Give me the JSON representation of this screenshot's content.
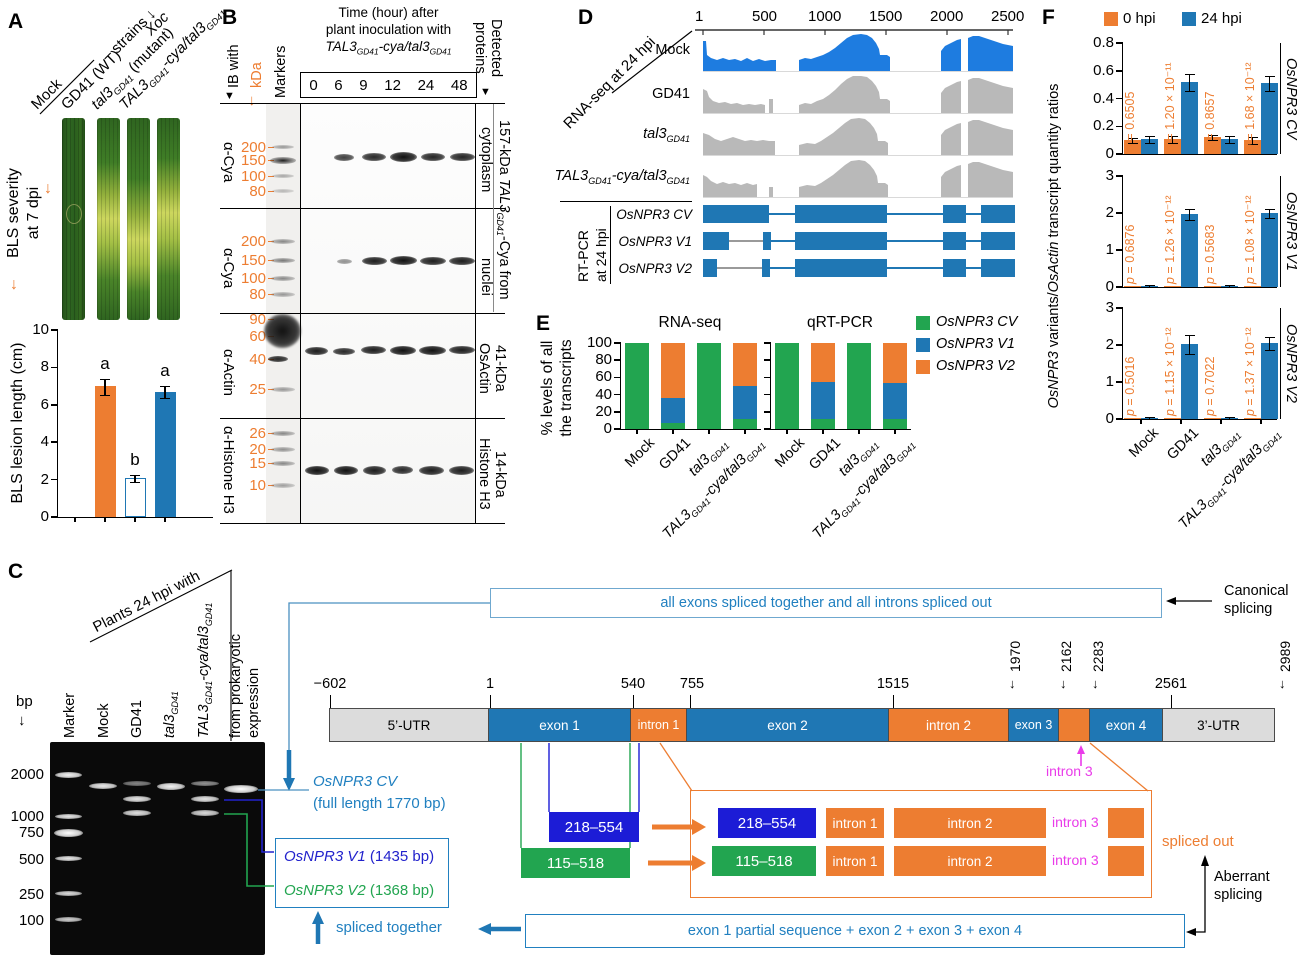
{
  "names": {
    "mock": {
      "text": "Mock"
    },
    "gd41": {
      "text": "GD41"
    },
    "tal3": {
      "pre": "tal3",
      "sub": "GD41"
    },
    "talcya": {
      "pre": "TAL3",
      "sub": "GD41",
      "mid": "-cya/tal3",
      "sub2": "GD41"
    }
  },
  "panelA": {
    "label": "A",
    "col_labels": [
      {
        "text": "Mock"
      },
      {
        "text": "GD41 (WT)"
      },
      {
        "pre": "tal3",
        "sub": "GD41",
        "post": " (mutant)"
      },
      {
        "pre": "TAL3",
        "sub": "GD41",
        "mid": "-cya/tal3",
        "sub2": "GD41"
      }
    ],
    "strains_label": "strains ↓",
    "species_label": "Xoc",
    "severity_line1": "BLS severity",
    "severity_line2": "at 7 dpi",
    "down_arrow": "↓"
  },
  "panelB": {
    "label": "B",
    "ib_with": "IB with",
    "kda": "kDa",
    "markers": "Markers",
    "title_line1": "Time (hour) after",
    "title_line2": "plant inoculation with",
    "times": [
      "0",
      "6",
      "9",
      "12",
      "24",
      "48"
    ],
    "detected_line1": "Detected",
    "detected_line2": "proteins",
    "antibodies": [
      "α-Cya",
      "α-Cya",
      "α-Actin",
      "α-Histone H3"
    ],
    "marker_rows": {
      "s1": [
        "200",
        "150",
        "100",
        "80"
      ],
      "s2": [
        "200",
        "150",
        "100",
        "80"
      ],
      "s3": [
        "90",
        "60",
        "40",
        "25"
      ],
      "s4": [
        "26",
        "20",
        "15",
        "10"
      ]
    },
    "right_cytoplasm": "cytoplasm",
    "right_nuclei": "nuclei",
    "right_cya_pre": "157-kDa ",
    "right_cya_name": "TAL3",
    "right_cya_sub": "GD41",
    "right_cya_post": "-Cya from",
    "right_actin_line1": "41-kDa",
    "right_actin_line2": "OsActin",
    "right_h3_line1": "14-kDa",
    "right_h3_line2": "Histone H3"
  },
  "panelD": {
    "label": "D",
    "scale_ticks": [
      "1",
      "500",
      "1000",
      "1500",
      "2000",
      "2500"
    ],
    "rnaseq_label": "RNA-seq at 24 hpi",
    "rtpcr_line1": "RT-PCR",
    "rtpcr_line2": "at 24 hpi",
    "models": [
      "OsNPR3 CV",
      "OsNPR3 V1",
      "OsNPR3 V2"
    ]
  },
  "panelE": {
    "label": "E",
    "ylabel_line1": "% levels of all",
    "ylabel_line2": "the transcripts",
    "legend": [
      "OsNPR3 CV",
      "OsNPR3 V1",
      "OsNPR3 V2"
    ]
  },
  "panelF": {
    "label": "F",
    "legend": [
      "0 hpi",
      "24 hpi"
    ],
    "ylabel_italic1": "OsNPR3",
    "ylabel_mid": " variants/",
    "ylabel_italic2": "OsActin",
    "ylabel_post": " transcript quantity ratios"
  },
  "panelC": {
    "label": "C",
    "header": "Plants 24 hpi with",
    "bp": "bp",
    "down_arrow": "↓",
    "ladder": [
      "2000",
      "1000",
      "750",
      "500",
      "250",
      "100"
    ],
    "lane_marker": "Marker",
    "prok_line1": "from prokaryotic",
    "prok_line2": "expression",
    "cv_name": "OsNPR3 CV",
    "cv_size": "(full length 1770 bp)",
    "v1_name": "OsNPR3 V1",
    "v1_size": " (1435 bp)",
    "v2_name": "OsNPR3 V2",
    "v2_size": " (1368 bp)",
    "spliced_together": "spliced together",
    "canonical_line1": "Canonical",
    "canonical_line2": "splicing",
    "aberrant_line1": "Aberrant",
    "aberrant_line2": "splicing",
    "spliced_out": "spliced out",
    "top_box": "all exons spliced together and all introns spliced out",
    "bottom_box": "exon 1 partial sequence + exon 2 + exon 3 + exon 4",
    "gene": {
      "coords_h": [
        "−602",
        "1",
        "540",
        "755",
        "1515",
        "2561"
      ],
      "coords_v": [
        "1970",
        "2162",
        "2283",
        "2989"
      ],
      "segments": [
        "5’-UTR",
        "exon 1",
        "intron 1",
        "exon 2",
        "intron 2",
        "exon 3",
        "exon 4",
        "3’-UTR"
      ],
      "intron3_label": "intron 3",
      "blue_block": "218–554",
      "green_block": "115–518",
      "box_introns": [
        "intron 1",
        "intron 2",
        "intron 3"
      ]
    }
  },
  "chart_data": [
    {
      "id": "panelA_lesion_length",
      "type": "bar",
      "ylabel": "BLS lesion length (cm)",
      "ylim": [
        0,
        10
      ],
      "ticks": [
        0,
        2,
        4,
        6,
        8,
        10
      ],
      "categories": [
        "Mock",
        "GD41",
        "tal3GD41",
        "TAL3GD41-cya/tal3GD41"
      ],
      "values": [
        0,
        7.0,
        2.1,
        6.7
      ],
      "errors": [
        0,
        0.4,
        0.15,
        0.3
      ],
      "sig_letters": [
        "",
        "a",
        "b",
        "a"
      ],
      "colors": [
        "",
        "#ED7D31",
        "#FFFFFF",
        "#1F77B4"
      ]
    },
    {
      "id": "panelE_transcript_percentages",
      "type": "stacked-bar",
      "ylabel": "% levels of all the transcripts",
      "ylim": [
        0,
        100
      ],
      "ticks": [
        0,
        20,
        40,
        60,
        80,
        100
      ],
      "series_names": [
        "OsNPR3 CV",
        "OsNPR3 V1",
        "OsNPR3 V2"
      ],
      "colors": [
        "#22A550",
        "#1F77B4",
        "#ED7D31"
      ],
      "cat_keys": [
        "mock",
        "gd41",
        "tal3",
        "talcya"
      ],
      "charts": [
        {
          "title": "RNA-seq",
          "values": [
            [
              100,
              0,
              0
            ],
            [
              7,
              29,
              64
            ],
            [
              100,
              0,
              0
            ],
            [
              12,
              38,
              50
            ]
          ]
        },
        {
          "title": "qRT-PCR",
          "values": [
            [
              100,
              0,
              0
            ],
            [
              12,
              43,
              45
            ],
            [
              100,
              0,
              0
            ],
            [
              12,
              41,
              47
            ]
          ]
        }
      ]
    },
    {
      "id": "panelF_qRTPCR_ratios",
      "type": "grouped-bar",
      "ylabel": "OsNPR3 variants/OsActin transcript quantity ratios",
      "legend": [
        "0 hpi",
        "24 hpi"
      ],
      "colors": [
        "#ED7D31",
        "#1F77B4"
      ],
      "cat_keys": [
        "mock",
        "gd41",
        "tal3",
        "talcya"
      ],
      "charts": [
        {
          "right_label": "OsNPR3 CV",
          "ymax": 0.8,
          "ticks": [
            0,
            0.2,
            0.4,
            0.6,
            0.8
          ],
          "values_0hpi": [
            0.1,
            0.11,
            0.12,
            0.1
          ],
          "values_24hpi": [
            0.11,
            0.52,
            0.11,
            0.51
          ],
          "errors_0hpi": [
            0.012,
            0.02,
            0.015,
            0.02
          ],
          "errors_24hpi": [
            0.02,
            0.06,
            0.02,
            0.05
          ],
          "p_values": [
            "0.6505",
            "1.20 × 10⁻¹¹",
            "0.8657",
            "1.68 × 10⁻¹²"
          ]
        },
        {
          "right_label": "OsNPR3 V1",
          "ymax": 3,
          "ticks": [
            0,
            1,
            2,
            3
          ],
          "values_0hpi": [
            0.02,
            0.04,
            0.02,
            0.04
          ],
          "values_24hpi": [
            0.03,
            1.98,
            0.03,
            2.0
          ],
          "errors_0hpi": [
            0,
            0,
            0,
            0
          ],
          "errors_24hpi": [
            0.01,
            0.13,
            0.01,
            0.1
          ],
          "p_values": [
            "0.6876",
            "1.26 × 10⁻¹²",
            "0.5683",
            "1.08 × 10⁻¹²"
          ]
        },
        {
          "right_label": "OsNPR3 V2",
          "ymax": 3,
          "ticks": [
            0,
            1,
            2,
            3
          ],
          "values_0hpi": [
            0.02,
            0.04,
            0.02,
            0.04
          ],
          "values_24hpi": [
            0.03,
            2.03,
            0.03,
            2.06
          ],
          "errors_0hpi": [
            0,
            0,
            0,
            0
          ],
          "errors_24hpi": [
            0.01,
            0.25,
            0.01,
            0.16
          ],
          "p_values": [
            "0.5016",
            "1.15 × 10⁻¹²",
            "0.7022",
            "1.37 × 10⁻¹²"
          ]
        }
      ]
    },
    {
      "id": "panelD_rnaseq_coverage",
      "type": "area",
      "x_ticks": [
        "1",
        "500",
        "1000",
        "1500",
        "2000",
        "2500"
      ],
      "tracks": [
        "Mock",
        "GD41",
        "tal3GD41",
        "TAL3GD41-cya/tal3GD41"
      ],
      "transcript_models": [
        "OsNPR3 CV",
        "OsNPR3 V1",
        "OsNPR3 V2"
      ]
    }
  ]
}
